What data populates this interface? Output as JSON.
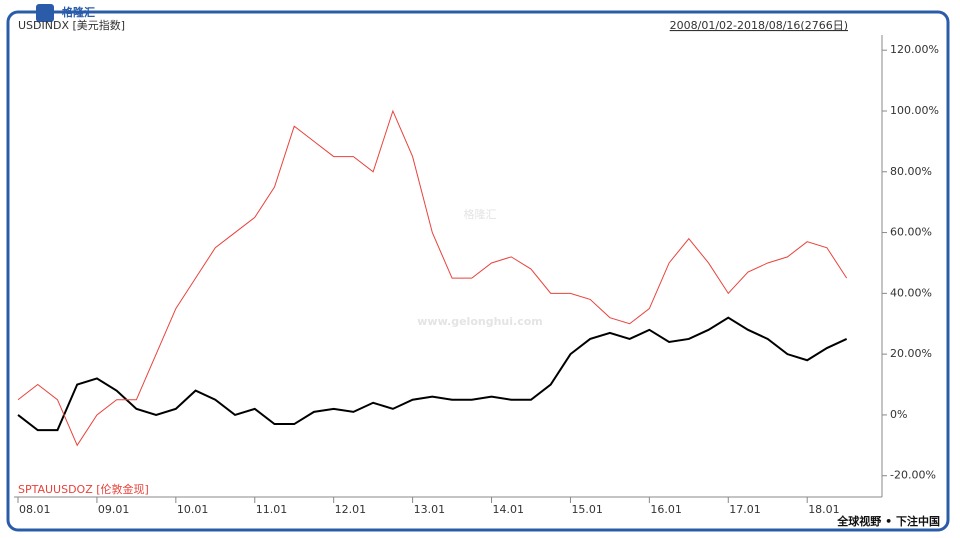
{
  "branding": {
    "logo": "格隆汇",
    "watermark": "格隆汇",
    "watermark_url": "www.gelonghui.com",
    "slogan": "全球视野 • 下注中国"
  },
  "chart_data": {
    "type": "line",
    "date_range": "2008/01/02-2018/08/16(2766日)",
    "categories": [
      "08.01",
      null,
      null,
      null,
      "09.01",
      null,
      null,
      null,
      "10.01",
      null,
      null,
      null,
      "11.01",
      null,
      null,
      null,
      "12.01",
      null,
      null,
      null,
      "13.01",
      null,
      null,
      null,
      "14.01",
      null,
      null,
      null,
      "15.01",
      null,
      null,
      null,
      "16.01",
      null,
      null,
      null,
      "17.01",
      null,
      null,
      null,
      "18.01",
      null,
      null
    ],
    "series": [
      {
        "name": "USDINDX [美元指数]",
        "color": "#000000",
        "values": [
          0,
          -5,
          -5,
          10,
          12,
          8,
          2,
          0,
          2,
          8,
          5,
          0,
          2,
          -3,
          -3,
          1,
          2,
          1,
          4,
          2,
          5,
          6,
          5,
          5,
          6,
          5,
          5,
          10,
          20,
          25,
          27,
          25,
          28,
          24,
          25,
          28,
          32,
          28,
          25,
          20,
          18,
          22,
          25
        ]
      },
      {
        "name": "SPTAUUSDOZ [伦敦金现]",
        "color": "#e8433c",
        "values": [
          5,
          10,
          5,
          -10,
          0,
          5,
          5,
          20,
          35,
          45,
          55,
          60,
          65,
          75,
          95,
          90,
          85,
          85,
          80,
          100,
          85,
          60,
          45,
          45,
          50,
          52,
          48,
          40,
          40,
          38,
          32,
          30,
          35,
          50,
          58,
          50,
          40,
          47,
          50,
          52,
          57,
          55,
          45
        ]
      }
    ],
    "ylim": [
      -27,
      125
    ],
    "yticks": [
      {
        "value": 120,
        "label": "120.00%"
      },
      {
        "value": 100,
        "label": "100.00%"
      },
      {
        "value": 80,
        "label": "80.00%"
      },
      {
        "value": 60,
        "label": "60.00%"
      },
      {
        "value": 40,
        "label": "40.00%"
      },
      {
        "value": 20,
        "label": "20.00%"
      },
      {
        "value": 0,
        "label": "0%"
      },
      {
        "value": -20,
        "label": "-20.00%"
      }
    ],
    "grid": false
  }
}
